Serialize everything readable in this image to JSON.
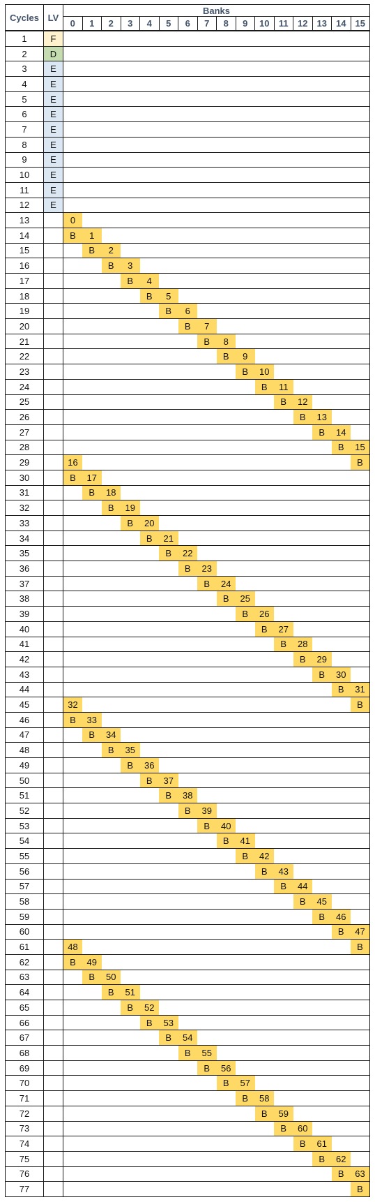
{
  "header": {
    "cycles_label": "Cycles",
    "lv_label": "LV",
    "banks_label": "Banks",
    "bank_numbers": [
      "0",
      "1",
      "2",
      "3",
      "4",
      "5",
      "6",
      "7",
      "8",
      "9",
      "10",
      "11",
      "12",
      "13",
      "14",
      "15"
    ]
  },
  "colors": {
    "F": "#fff2cc",
    "D": "#c5dcb0",
    "E": "#dbe7f3",
    "highlight": "#ffd966",
    "header_text": "#44546a"
  },
  "rows": [
    {
      "cycle": "1",
      "lv": "F"
    },
    {
      "cycle": "2",
      "lv": "D"
    },
    {
      "cycle": "3",
      "lv": "E"
    },
    {
      "cycle": "4",
      "lv": "E"
    },
    {
      "cycle": "5",
      "lv": "E"
    },
    {
      "cycle": "6",
      "lv": "E"
    },
    {
      "cycle": "7",
      "lv": "E"
    },
    {
      "cycle": "8",
      "lv": "E"
    },
    {
      "cycle": "9",
      "lv": "E"
    },
    {
      "cycle": "10",
      "lv": "E"
    },
    {
      "cycle": "11",
      "lv": "E"
    },
    {
      "cycle": "12",
      "lv": "E"
    },
    {
      "cycle": "13",
      "cells": [
        [
          0,
          "0"
        ]
      ]
    },
    {
      "cycle": "14",
      "cells": [
        [
          0,
          "B"
        ],
        [
          1,
          "1"
        ]
      ]
    },
    {
      "cycle": "15",
      "cells": [
        [
          1,
          "B"
        ],
        [
          2,
          "2"
        ]
      ]
    },
    {
      "cycle": "16",
      "cells": [
        [
          2,
          "B"
        ],
        [
          3,
          "3"
        ]
      ]
    },
    {
      "cycle": "17",
      "cells": [
        [
          3,
          "B"
        ],
        [
          4,
          "4"
        ]
      ]
    },
    {
      "cycle": "18",
      "cells": [
        [
          4,
          "B"
        ],
        [
          5,
          "5"
        ]
      ]
    },
    {
      "cycle": "19",
      "cells": [
        [
          5,
          "B"
        ],
        [
          6,
          "6"
        ]
      ]
    },
    {
      "cycle": "20",
      "cells": [
        [
          6,
          "B"
        ],
        [
          7,
          "7"
        ]
      ]
    },
    {
      "cycle": "21",
      "cells": [
        [
          7,
          "B"
        ],
        [
          8,
          "8"
        ]
      ]
    },
    {
      "cycle": "22",
      "cells": [
        [
          8,
          "B"
        ],
        [
          9,
          "9"
        ]
      ]
    },
    {
      "cycle": "23",
      "cells": [
        [
          9,
          "B"
        ],
        [
          10,
          "10"
        ]
      ]
    },
    {
      "cycle": "24",
      "cells": [
        [
          10,
          "B"
        ],
        [
          11,
          "11"
        ]
      ]
    },
    {
      "cycle": "25",
      "cells": [
        [
          11,
          "B"
        ],
        [
          12,
          "12"
        ]
      ]
    },
    {
      "cycle": "26",
      "cells": [
        [
          12,
          "B"
        ],
        [
          13,
          "13"
        ]
      ]
    },
    {
      "cycle": "27",
      "cells": [
        [
          13,
          "B"
        ],
        [
          14,
          "14"
        ]
      ]
    },
    {
      "cycle": "28",
      "cells": [
        [
          14,
          "B"
        ],
        [
          15,
          "15"
        ]
      ]
    },
    {
      "cycle": "29",
      "cells": [
        [
          0,
          "16"
        ],
        [
          15,
          "B"
        ]
      ]
    },
    {
      "cycle": "30",
      "cells": [
        [
          0,
          "B"
        ],
        [
          1,
          "17"
        ]
      ]
    },
    {
      "cycle": "31",
      "cells": [
        [
          1,
          "B"
        ],
        [
          2,
          "18"
        ]
      ]
    },
    {
      "cycle": "32",
      "cells": [
        [
          2,
          "B"
        ],
        [
          3,
          "19"
        ]
      ]
    },
    {
      "cycle": "33",
      "cells": [
        [
          3,
          "B"
        ],
        [
          4,
          "20"
        ]
      ]
    },
    {
      "cycle": "34",
      "cells": [
        [
          4,
          "B"
        ],
        [
          5,
          "21"
        ]
      ]
    },
    {
      "cycle": "35",
      "cells": [
        [
          5,
          "B"
        ],
        [
          6,
          "22"
        ]
      ]
    },
    {
      "cycle": "36",
      "cells": [
        [
          6,
          "B"
        ],
        [
          7,
          "23"
        ]
      ]
    },
    {
      "cycle": "37",
      "cells": [
        [
          7,
          "B"
        ],
        [
          8,
          "24"
        ]
      ]
    },
    {
      "cycle": "38",
      "cells": [
        [
          8,
          "B"
        ],
        [
          9,
          "25"
        ]
      ]
    },
    {
      "cycle": "39",
      "cells": [
        [
          9,
          "B"
        ],
        [
          10,
          "26"
        ]
      ]
    },
    {
      "cycle": "40",
      "cells": [
        [
          10,
          "B"
        ],
        [
          11,
          "27"
        ]
      ]
    },
    {
      "cycle": "41",
      "cells": [
        [
          11,
          "B"
        ],
        [
          12,
          "28"
        ]
      ]
    },
    {
      "cycle": "42",
      "cells": [
        [
          12,
          "B"
        ],
        [
          13,
          "29"
        ]
      ]
    },
    {
      "cycle": "43",
      "cells": [
        [
          13,
          "B"
        ],
        [
          14,
          "30"
        ]
      ]
    },
    {
      "cycle": "44",
      "cells": [
        [
          14,
          "B"
        ],
        [
          15,
          "31"
        ]
      ]
    },
    {
      "cycle": "45",
      "cells": [
        [
          0,
          "32"
        ],
        [
          15,
          "B"
        ]
      ]
    },
    {
      "cycle": "46",
      "cells": [
        [
          0,
          "B"
        ],
        [
          1,
          "33"
        ]
      ]
    },
    {
      "cycle": "47",
      "cells": [
        [
          1,
          "B"
        ],
        [
          2,
          "34"
        ]
      ]
    },
    {
      "cycle": "48",
      "cells": [
        [
          2,
          "B"
        ],
        [
          3,
          "35"
        ]
      ]
    },
    {
      "cycle": "49",
      "cells": [
        [
          3,
          "B"
        ],
        [
          4,
          "36"
        ]
      ]
    },
    {
      "cycle": "50",
      "cells": [
        [
          4,
          "B"
        ],
        [
          5,
          "37"
        ]
      ]
    },
    {
      "cycle": "51",
      "cells": [
        [
          5,
          "B"
        ],
        [
          6,
          "38"
        ]
      ]
    },
    {
      "cycle": "52",
      "cells": [
        [
          6,
          "B"
        ],
        [
          7,
          "39"
        ]
      ]
    },
    {
      "cycle": "53",
      "cells": [
        [
          7,
          "B"
        ],
        [
          8,
          "40"
        ]
      ]
    },
    {
      "cycle": "54",
      "cells": [
        [
          8,
          "B"
        ],
        [
          9,
          "41"
        ]
      ]
    },
    {
      "cycle": "55",
      "cells": [
        [
          9,
          "B"
        ],
        [
          10,
          "42"
        ]
      ]
    },
    {
      "cycle": "56",
      "cells": [
        [
          10,
          "B"
        ],
        [
          11,
          "43"
        ]
      ]
    },
    {
      "cycle": "57",
      "cells": [
        [
          11,
          "B"
        ],
        [
          12,
          "44"
        ]
      ]
    },
    {
      "cycle": "58",
      "cells": [
        [
          12,
          "B"
        ],
        [
          13,
          "45"
        ]
      ]
    },
    {
      "cycle": "59",
      "cells": [
        [
          13,
          "B"
        ],
        [
          14,
          "46"
        ]
      ]
    },
    {
      "cycle": "60",
      "cells": [
        [
          14,
          "B"
        ],
        [
          15,
          "47"
        ]
      ]
    },
    {
      "cycle": "61",
      "cells": [
        [
          0,
          "48"
        ],
        [
          15,
          "B"
        ]
      ]
    },
    {
      "cycle": "62",
      "cells": [
        [
          0,
          "B"
        ],
        [
          1,
          "49"
        ]
      ]
    },
    {
      "cycle": "63",
      "cells": [
        [
          1,
          "B"
        ],
        [
          2,
          "50"
        ]
      ]
    },
    {
      "cycle": "64",
      "cells": [
        [
          2,
          "B"
        ],
        [
          3,
          "51"
        ]
      ]
    },
    {
      "cycle": "65",
      "cells": [
        [
          3,
          "B"
        ],
        [
          4,
          "52"
        ]
      ]
    },
    {
      "cycle": "66",
      "cells": [
        [
          4,
          "B"
        ],
        [
          5,
          "53"
        ]
      ]
    },
    {
      "cycle": "67",
      "cells": [
        [
          5,
          "B"
        ],
        [
          6,
          "54"
        ]
      ]
    },
    {
      "cycle": "68",
      "cells": [
        [
          6,
          "B"
        ],
        [
          7,
          "55"
        ]
      ]
    },
    {
      "cycle": "69",
      "cells": [
        [
          7,
          "B"
        ],
        [
          8,
          "56"
        ]
      ]
    },
    {
      "cycle": "70",
      "cells": [
        [
          8,
          "B"
        ],
        [
          9,
          "57"
        ]
      ]
    },
    {
      "cycle": "71",
      "cells": [
        [
          9,
          "B"
        ],
        [
          10,
          "58"
        ]
      ]
    },
    {
      "cycle": "72",
      "cells": [
        [
          10,
          "B"
        ],
        [
          11,
          "59"
        ]
      ]
    },
    {
      "cycle": "73",
      "cells": [
        [
          11,
          "B"
        ],
        [
          12,
          "60"
        ]
      ]
    },
    {
      "cycle": "74",
      "cells": [
        [
          12,
          "B"
        ],
        [
          13,
          "61"
        ]
      ]
    },
    {
      "cycle": "75",
      "cells": [
        [
          13,
          "B"
        ],
        [
          14,
          "62"
        ]
      ]
    },
    {
      "cycle": "76",
      "cells": [
        [
          14,
          "B"
        ],
        [
          15,
          "63"
        ]
      ]
    },
    {
      "cycle": "77",
      "cells": [
        [
          15,
          "B"
        ]
      ]
    }
  ]
}
